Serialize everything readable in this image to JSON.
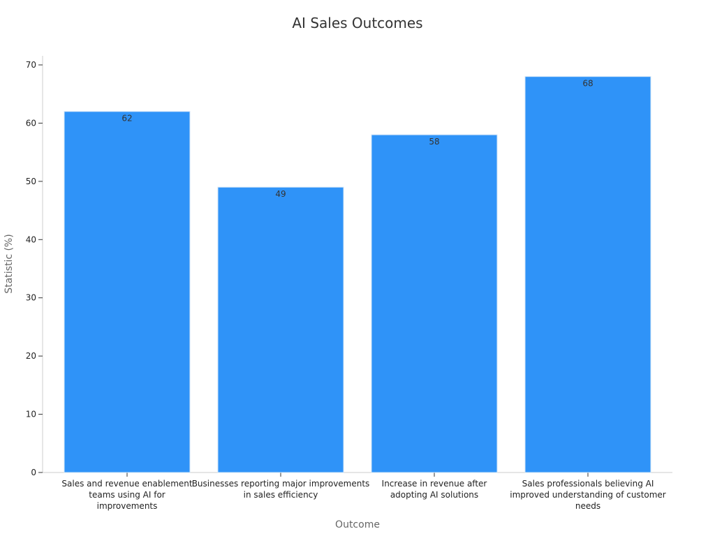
{
  "chart_data": {
    "type": "bar",
    "title": "AI Sales Outcomes",
    "xlabel": "Outcome",
    "ylabel": "Statistic (%)",
    "ylim": [
      0,
      70
    ],
    "yticks": [
      0,
      10,
      20,
      30,
      40,
      50,
      60,
      70
    ],
    "categories": [
      "Sales and revenue enablement teams using AI for improvements",
      "Businesses reporting major improvements in sales efficiency",
      "Increase in revenue after adopting AI solutions",
      "Sales professionals believing AI improved understanding of customer needs"
    ],
    "category_lines": [
      [
        "Sales and revenue enablement",
        "teams using AI for",
        "improvements"
      ],
      [
        "Businesses reporting major improvements",
        "in sales efficiency"
      ],
      [
        "Increase in revenue after",
        "adopting AI solutions"
      ],
      [
        "Sales professionals believing AI",
        "improved understanding of customer",
        "needs"
      ]
    ],
    "values": [
      62,
      49,
      58,
      68
    ],
    "data_labels": [
      "62",
      "49",
      "58",
      "68"
    ],
    "bar_color": "#2f93f8",
    "grid": false,
    "legend": "none"
  }
}
